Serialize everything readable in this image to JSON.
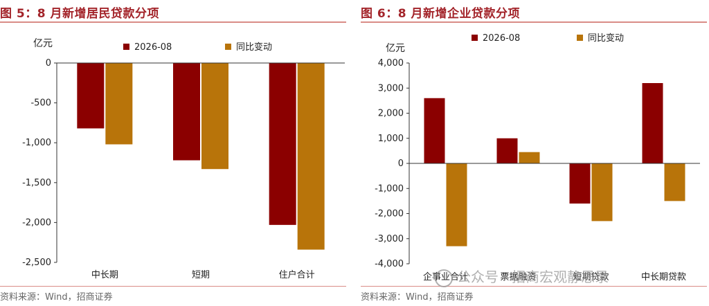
{
  "colors": {
    "series1": "#8b0000",
    "series2": "#b8740a",
    "title": "#a3242a"
  },
  "left": {
    "title": "图 5：8 月新增居民贷款分项",
    "source": "资料来源：Wind，招商证券"
  },
  "right": {
    "title": "图 6：8 月新增企业贷款分项",
    "source": "资料来源：Wind，招商证券"
  },
  "watermark": "公众号 · 招商宏观静思录",
  "chart_data": [
    {
      "type": "bar",
      "ylabel": "亿元",
      "categories": [
        "中长期",
        "短期",
        "住户合计"
      ],
      "series": [
        {
          "name": "2026-08",
          "values": [
            -820,
            -1220,
            -2030
          ]
        },
        {
          "name": "同比变动",
          "values": [
            -1020,
            -1330,
            -2340
          ]
        }
      ],
      "ylim": [
        -2500,
        0
      ],
      "yticks": [
        "0",
        "-500",
        "-1,000",
        "-1,500",
        "-2,000",
        "-2,500"
      ],
      "ytick_values": [
        0,
        -500,
        -1000,
        -1500,
        -2000,
        -2500
      ],
      "legend": "top-center",
      "grid": false
    },
    {
      "type": "bar",
      "ylabel": "亿元",
      "categories": [
        "企事业合计",
        "票据融资",
        "短期贷款",
        "中长期贷款"
      ],
      "series": [
        {
          "name": "2026-08",
          "values": [
            2600,
            1000,
            -1600,
            3200
          ]
        },
        {
          "name": "同比变动",
          "values": [
            -3300,
            450,
            -2300,
            -1500
          ]
        }
      ],
      "ylim": [
        -4000,
        4000
      ],
      "yticks": [
        "4,000",
        "3,000",
        "2,000",
        "1,000",
        "0",
        "-1,000",
        "-2,000",
        "-3,000",
        "-4,000"
      ],
      "ytick_values": [
        4000,
        3000,
        2000,
        1000,
        0,
        -1000,
        -2000,
        -3000,
        -4000
      ],
      "legend": "top-center",
      "grid": false
    }
  ]
}
